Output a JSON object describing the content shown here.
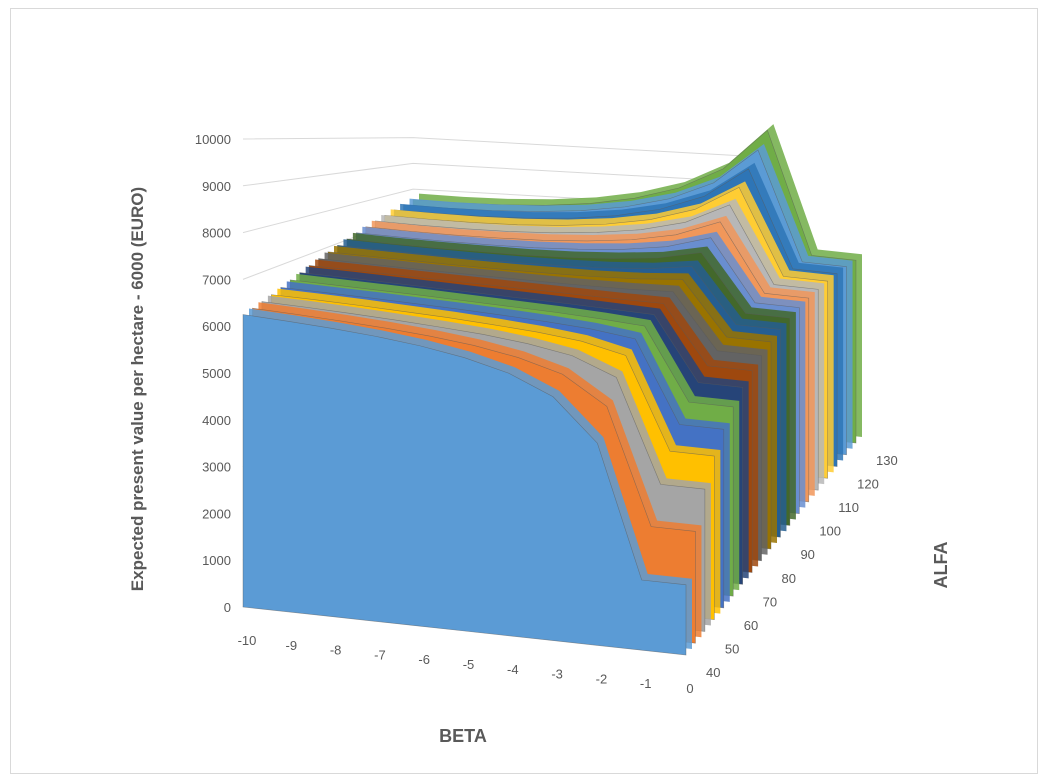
{
  "chart_data": {
    "type": "area",
    "style": "3d-surface-ribbons",
    "title": "",
    "xlabel": "BETA",
    "ylabel": "Expected present value per hectare - 6000 (EURO)",
    "zlabel": "ALFA",
    "x": [
      -10,
      -9,
      -8,
      -7,
      -6,
      -5,
      -4,
      -3,
      -2,
      -1,
      0
    ],
    "x_tick_labels": [
      "-10",
      "-9",
      "-8",
      "-7",
      "-6",
      "-5",
      "-4",
      "-3",
      "-2",
      "-1",
      "0"
    ],
    "z_tick_labels": [
      "40",
      "50",
      "60",
      "70",
      "80",
      "90",
      "100",
      "110",
      "120",
      "130"
    ],
    "y_tick_labels": [
      "0",
      "1000",
      "2000",
      "3000",
      "4000",
      "5000",
      "6000",
      "7000",
      "8000",
      "9000",
      "10000"
    ],
    "ylim": [
      0,
      10000
    ],
    "grid": true,
    "legend": "none",
    "series_alfa": [
      40,
      45,
      50,
      55,
      60,
      65,
      70,
      75,
      80,
      85,
      90,
      95,
      100,
      105,
      110,
      115,
      120,
      125,
      130
    ],
    "series": [
      {
        "values": [
          6250,
          6210,
          6160,
          6090,
          5990,
          5840,
          5610,
          5210,
          4320,
          1500,
          1500
        ]
      },
      {
        "values": [
          6290,
          6260,
          6220,
          6170,
          6100,
          6000,
          5840,
          5580,
          4980,
          2450,
          2450
        ]
      },
      {
        "values": [
          6340,
          6320,
          6290,
          6250,
          6200,
          6140,
          6040,
          5880,
          5500,
          3200,
          3200
        ]
      },
      {
        "values": [
          6400,
          6390,
          6370,
          6340,
          6310,
          6260,
          6200,
          6100,
          5880,
          3780,
          3780
        ]
      },
      {
        "values": [
          6470,
          6460,
          6450,
          6430,
          6410,
          6380,
          6340,
          6280,
          6160,
          4240,
          4240
        ]
      },
      {
        "values": [
          6550,
          6540,
          6530,
          6520,
          6500,
          6480,
          6460,
          6420,
          6360,
          4620,
          4620
        ]
      },
      {
        "values": [
          6630,
          6630,
          6620,
          6610,
          6600,
          6590,
          6580,
          6560,
          6540,
          4950,
          4950
        ]
      },
      {
        "values": [
          6710,
          6710,
          6710,
          6710,
          6710,
          6710,
          6710,
          6710,
          6720,
          5230,
          5230
        ]
      },
      {
        "values": [
          6790,
          6790,
          6790,
          6800,
          6810,
          6820,
          6840,
          6870,
          6930,
          5480,
          5480
        ]
      },
      {
        "values": [
          6870,
          6870,
          6880,
          6890,
          6910,
          6940,
          6980,
          7050,
          7170,
          5710,
          5710
        ]
      },
      {
        "values": [
          6950,
          6950,
          6960,
          6980,
          7010,
          7060,
          7130,
          7240,
          7440,
          5920,
          5920
        ]
      },
      {
        "values": [
          7030,
          7030,
          7050,
          7080,
          7120,
          7190,
          7300,
          7460,
          7760,
          6110,
          6110
        ]
      },
      {
        "values": [
          7110,
          7120,
          7140,
          7180,
          7240,
          7340,
          7480,
          7710,
          8130,
          6290,
          6290
        ]
      },
      {
        "values": [
          7190,
          7200,
          7230,
          7290,
          7370,
          7500,
          7690,
          8000,
          8560,
          6450,
          6450
        ]
      },
      {
        "values": [
          7270,
          7290,
          7330,
          7400,
          7510,
          7680,
          7930,
          8330,
          9060,
          6600,
          6600
        ]
      },
      {
        "values": [
          7350,
          7380,
          7430,
          7520,
          7660,
          7870,
          8190,
          8700,
          9620,
          6740,
          6740
        ]
      },
      {
        "values": [
          7430,
          7470,
          7540,
          7650,
          7820,
          8080,
          8480,
          9110,
          10260,
          6870,
          6870
        ]
      },
      {
        "values": [
          7510,
          7560,
          7650,
          7790,
          8000,
          8320,
          8800,
          9570,
          10970,
          6990,
          6990
        ]
      },
      {
        "values": [
          7590,
          7650,
          7760,
          7930,
          8190,
          8580,
          9160,
          10090,
          11780,
          7100,
          7100
        ]
      }
    ],
    "colors": [
      "#5b9bd5",
      "#ed7d31",
      "#a5a5a5",
      "#ffc000",
      "#4472c4",
      "#70ad47",
      "#264478",
      "#9e480e",
      "#636363",
      "#997300",
      "#255e91",
      "#43682b",
      "#698ed0",
      "#f1975a",
      "#b7b7b7",
      "#ffcd33",
      "#2e75b6",
      "#5b9bd5",
      "#70ad47"
    ]
  }
}
